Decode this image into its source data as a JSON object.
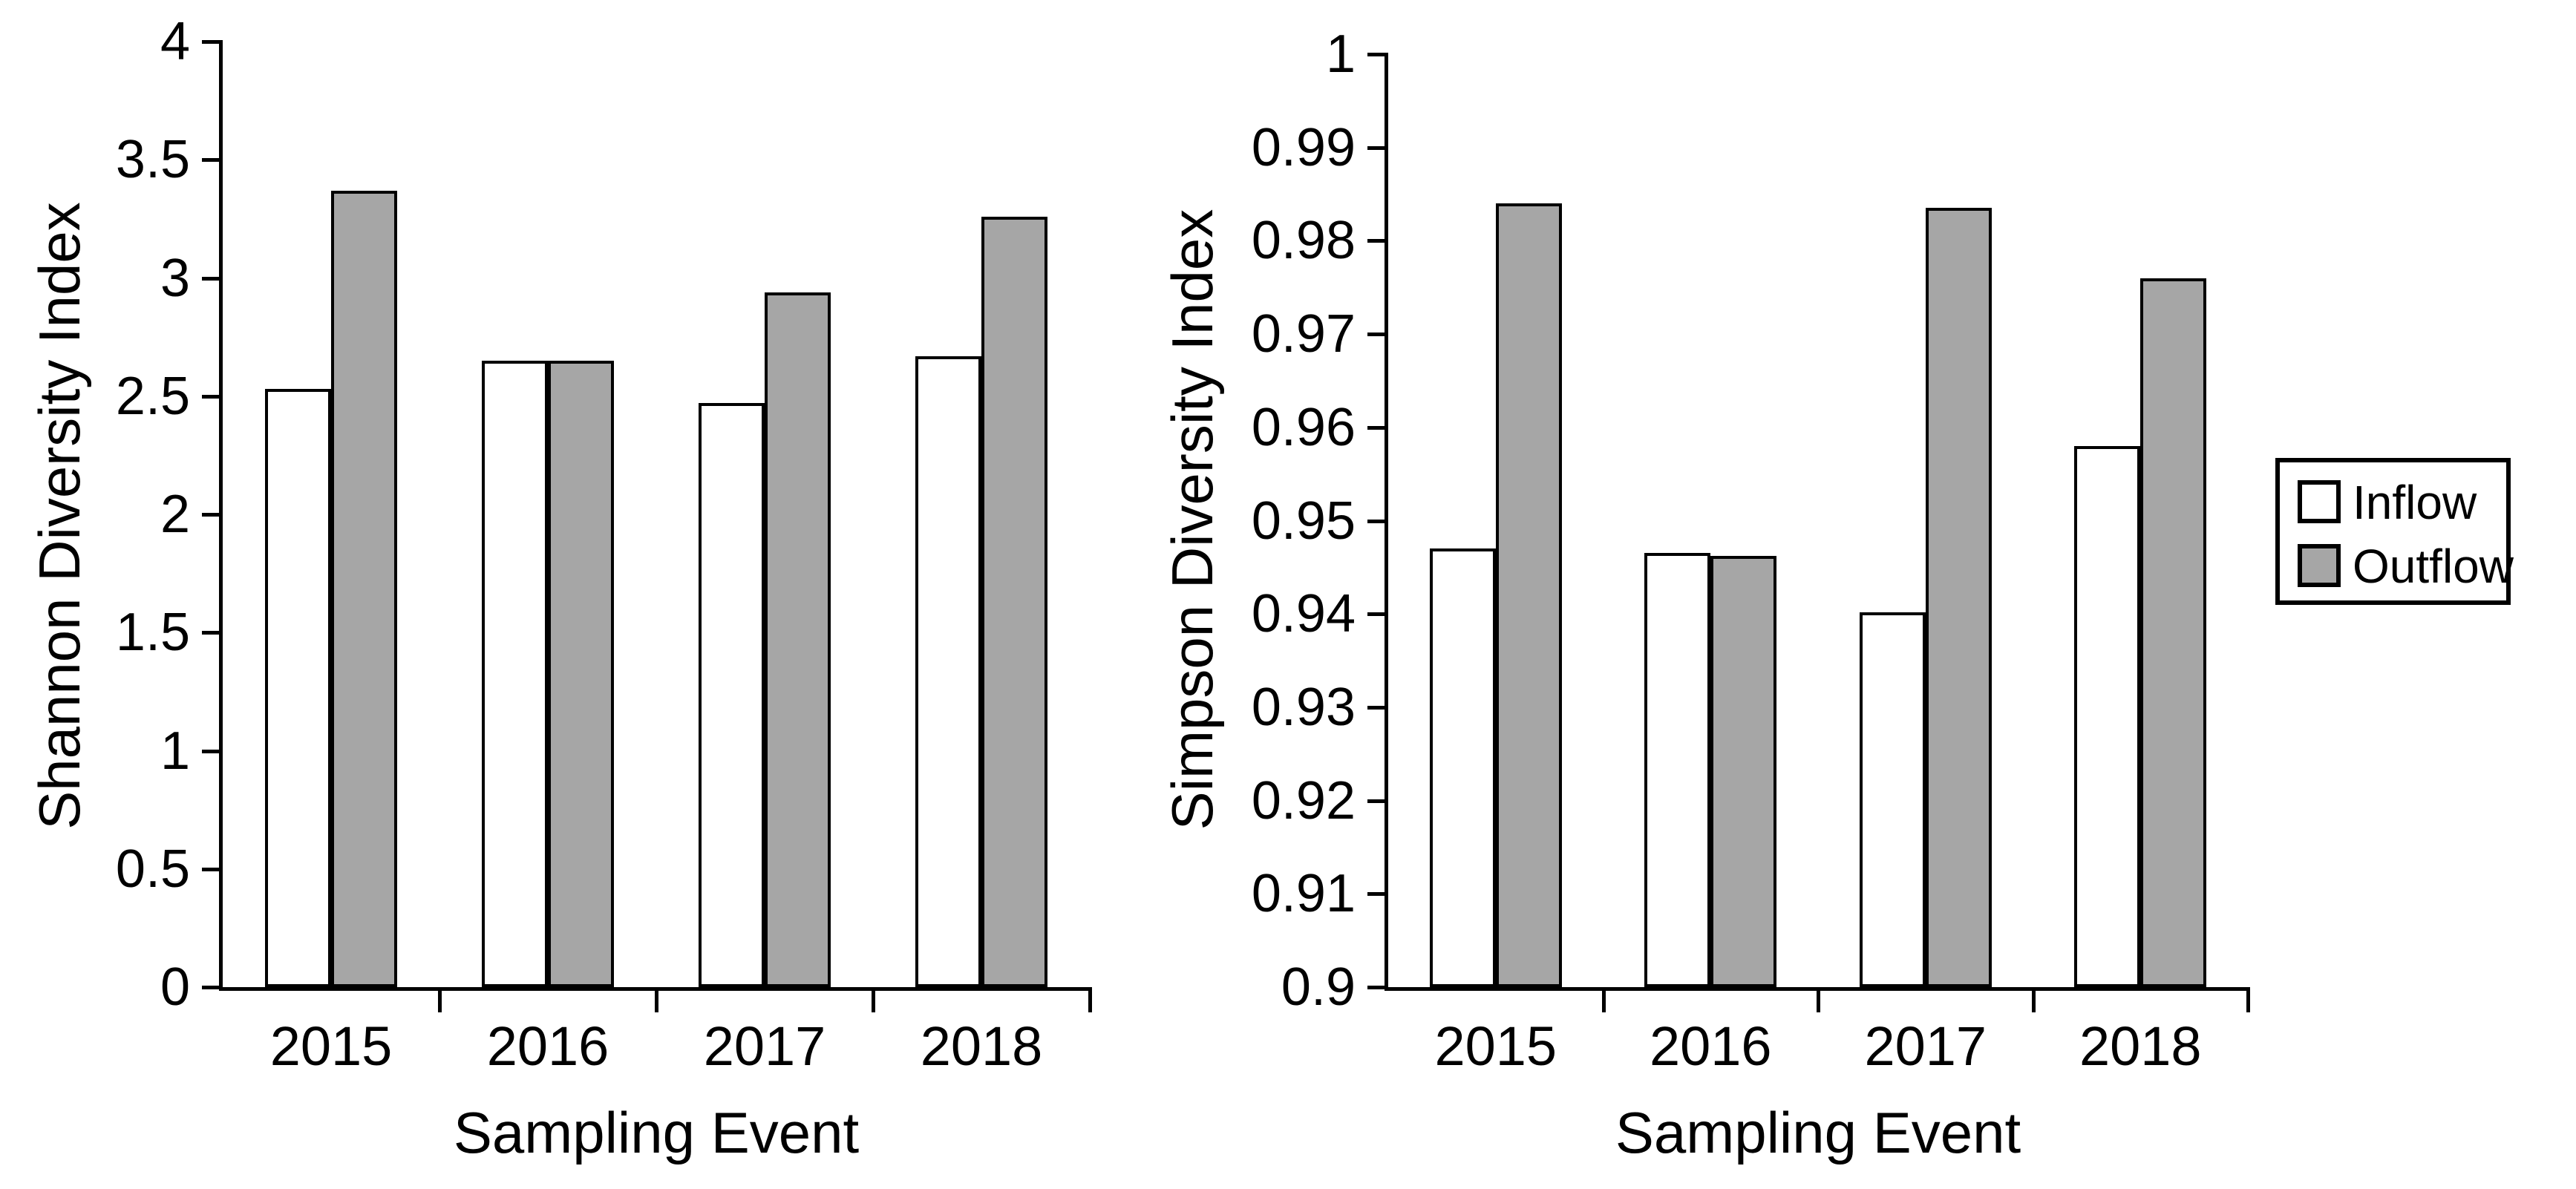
{
  "figure": {
    "kind": "two-panel grouped bar figure",
    "background": "#ffffff"
  },
  "colors": {
    "inflow_fill": "#ffffff",
    "outflow_fill": "#a6a6a6",
    "outline": "#000000",
    "text": "#000000"
  },
  "legend": {
    "position": "right",
    "items": [
      {
        "label": "Inflow",
        "fill": "#ffffff"
      },
      {
        "label": "Outflow",
        "fill": "#a6a6a6"
      }
    ]
  },
  "chart_data": [
    {
      "id": "shannon",
      "type": "bar",
      "xlabel": "Sampling Event",
      "ylabel": "Shannon Diversity Index",
      "categories": [
        "2015",
        "2016",
        "2017",
        "2018"
      ],
      "series": [
        {
          "name": "Inflow",
          "fill": "#ffffff",
          "values": [
            2.53,
            2.65,
            2.47,
            2.67
          ]
        },
        {
          "name": "Outflow",
          "fill": "#a6a6a6",
          "values": [
            3.37,
            2.65,
            2.94,
            3.26
          ]
        }
      ],
      "ylim": [
        0,
        4
      ],
      "ytick_labels": [
        "0",
        "0.5",
        "1",
        "1.5",
        "2",
        "2.5",
        "3",
        "3.5",
        "4"
      ],
      "grid": false
    },
    {
      "id": "simpson",
      "type": "bar",
      "xlabel": "Sampling Event",
      "ylabel": "Simpson Diversity Index",
      "categories": [
        "2015",
        "2016",
        "2017",
        "2018"
      ],
      "series": [
        {
          "name": "Inflow",
          "fill": "#ffffff",
          "values": [
            0.947,
            0.9465,
            0.9402,
            0.958
          ]
        },
        {
          "name": "Outflow",
          "fill": "#a6a6a6",
          "values": [
            0.984,
            0.9462,
            0.9835,
            0.976
          ]
        }
      ],
      "ylim": [
        0.9,
        1
      ],
      "ytick_labels": [
        "0.9",
        "0.91",
        "0.92",
        "0.93",
        "0.94",
        "0.95",
        "0.96",
        "0.97",
        "0.98",
        "0.99",
        "1"
      ],
      "grid": false
    }
  ]
}
